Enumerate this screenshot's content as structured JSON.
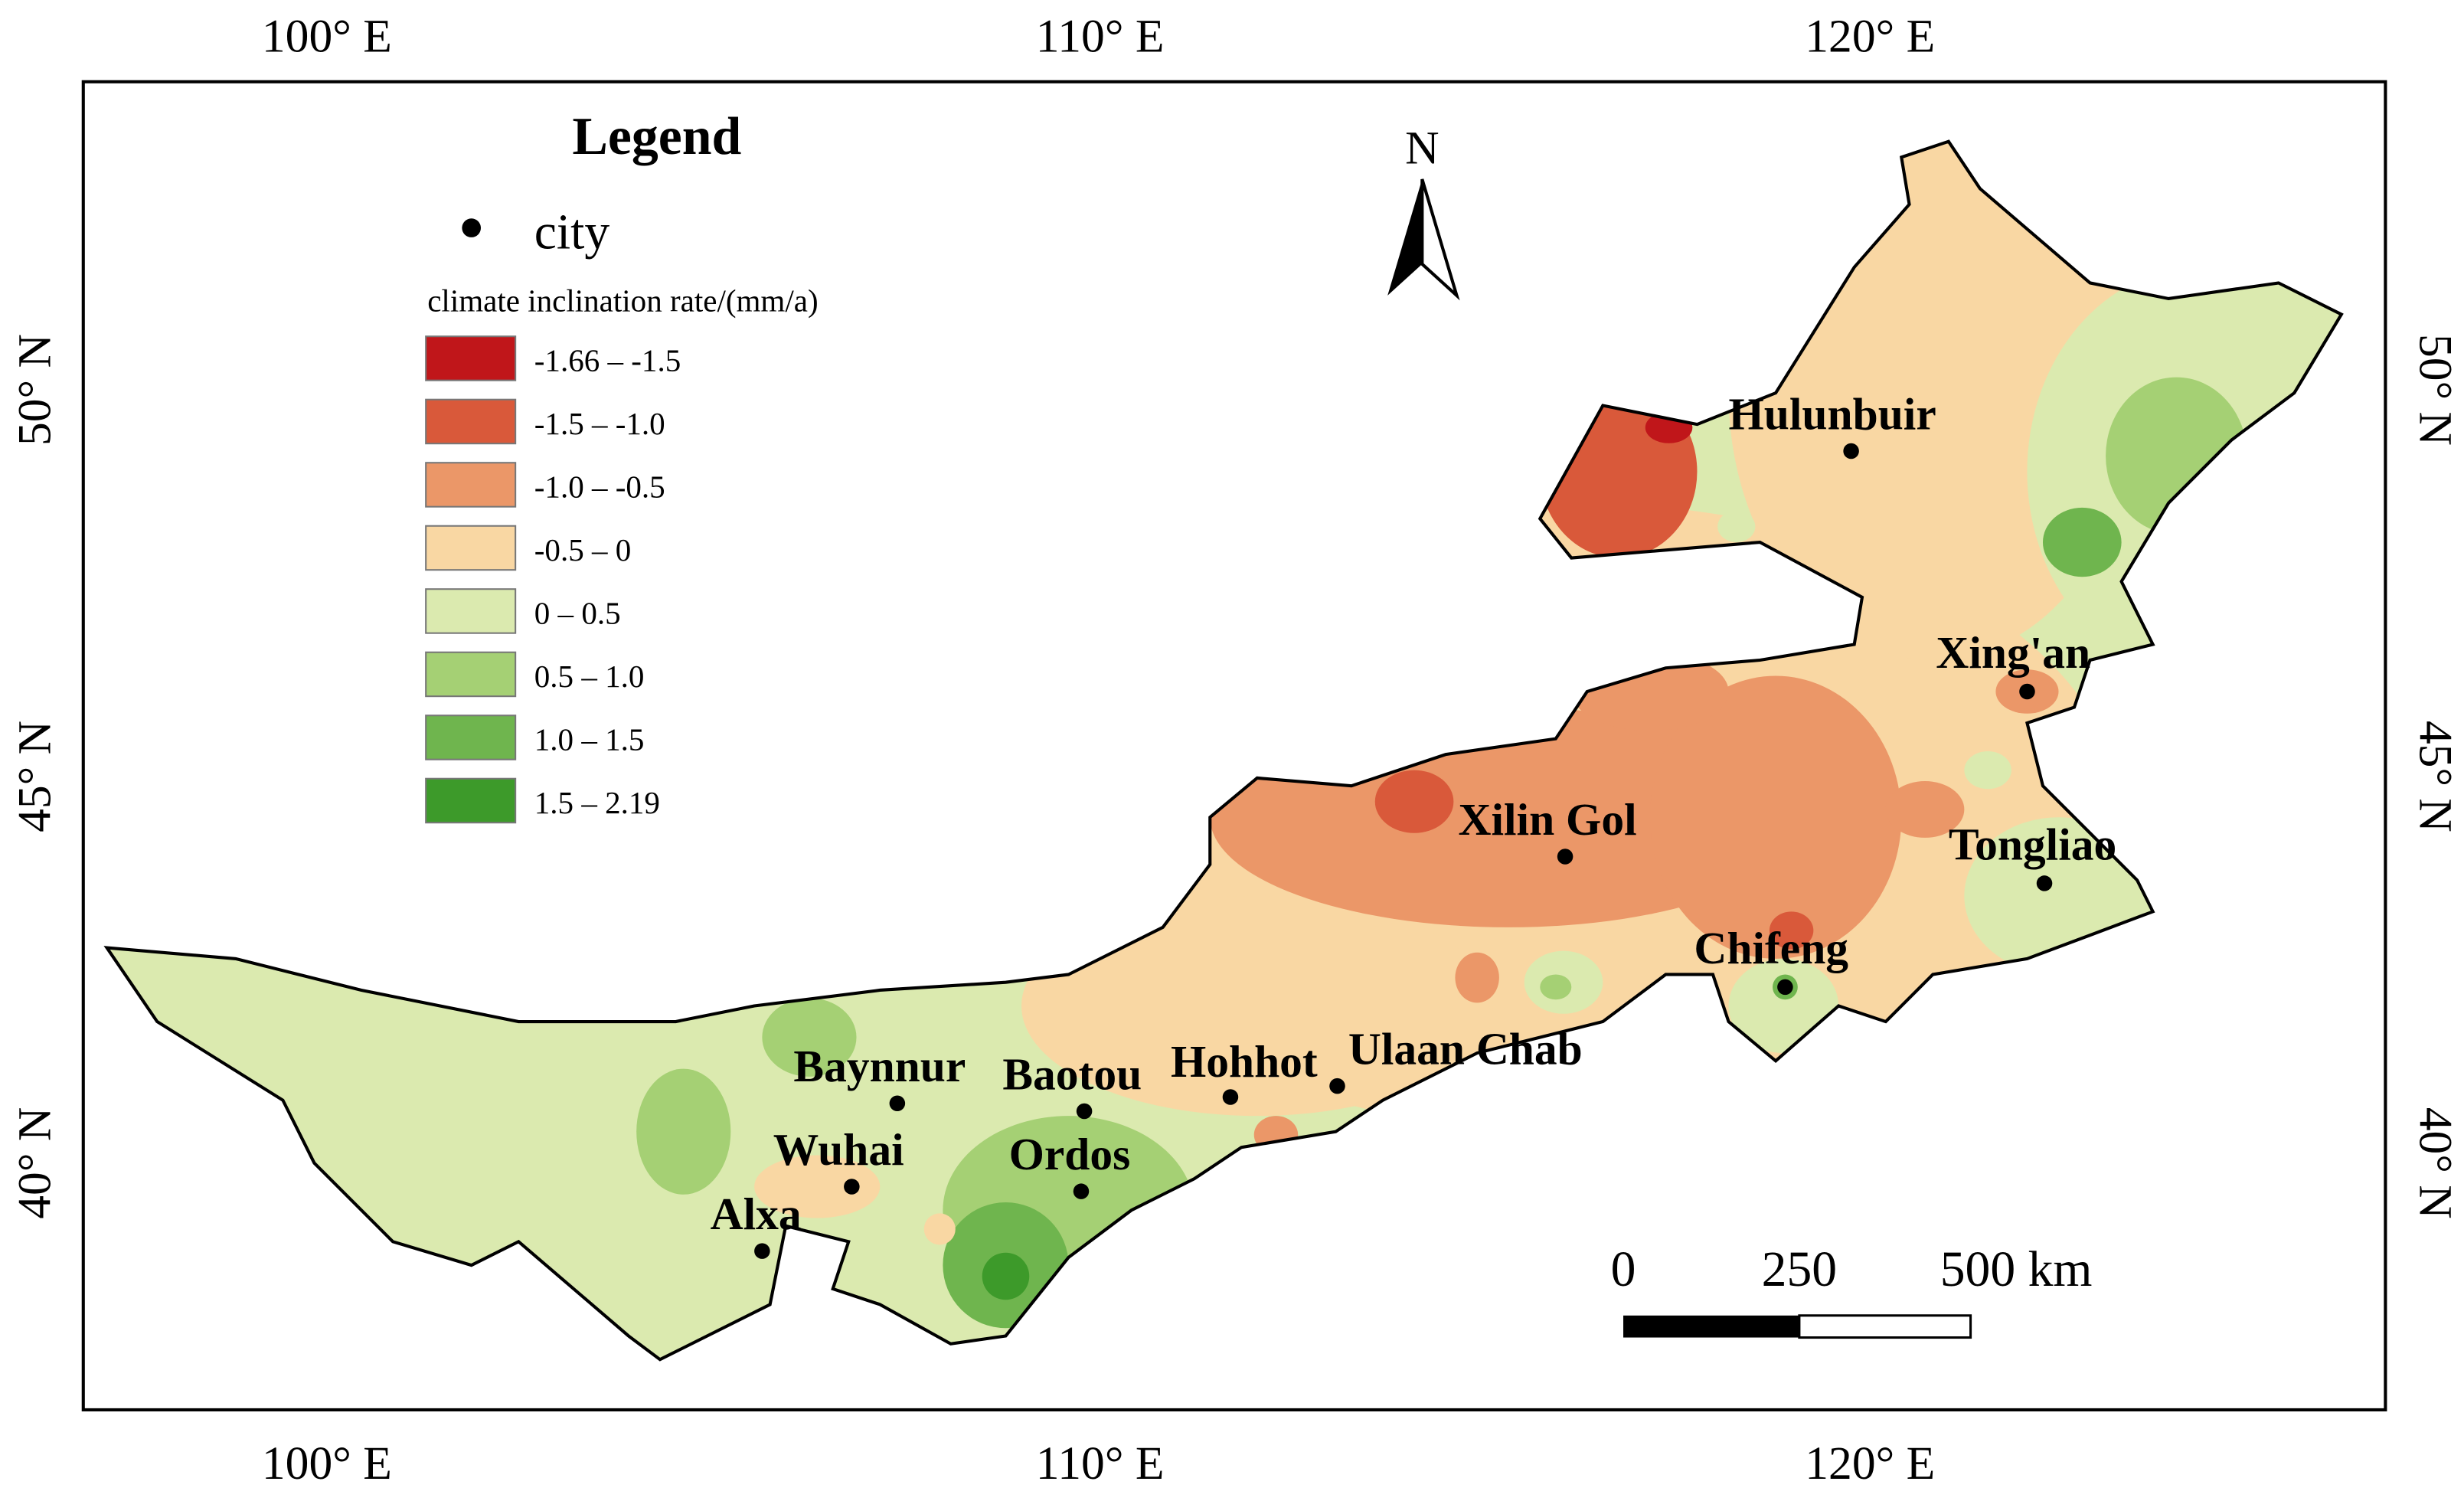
{
  "ticks": {
    "top": [
      "100° E",
      "110° E",
      "120° E"
    ],
    "bottom": [
      "100° E",
      "110° E",
      "120° E"
    ],
    "left": [
      "50° N",
      "45° N",
      "40° N"
    ],
    "right": [
      "50° N",
      "45° N",
      "40° N"
    ]
  },
  "legend": {
    "title": "Legend",
    "point_label": "city",
    "subtitle": "climate inclination rate/(mm/a)",
    "classes": [
      {
        "label": "-1.66 – -1.5",
        "color": "#c0161a"
      },
      {
        "label": "-1.5 – -1.0",
        "color": "#d9593a"
      },
      {
        "label": "-1.0 – -0.5",
        "color": "#eb9768"
      },
      {
        "label": "-0.5 – 0",
        "color": "#f9d7a3"
      },
      {
        "label": "0 – 0.5",
        "color": "#dbeaaf"
      },
      {
        "label": "0.5 – 1.0",
        "color": "#a5d074"
      },
      {
        "label": "1.0 – 1.5",
        "color": "#6fb54e"
      },
      {
        "label": "1.5 – 2.19",
        "color": "#3d9a2a"
      }
    ]
  },
  "north": "N",
  "scale_bar": {
    "labels": [
      "0",
      "250",
      "500 km"
    ]
  },
  "cities": [
    "Hulunbuir",
    "Xing'an",
    "Xilin Gol",
    "Tongliao",
    "Chifeng",
    "Ulaan Chab",
    "Hohhot",
    "Baotou",
    "Baynnur",
    "Ordos",
    "Wuhai",
    "Alxa"
  ]
}
